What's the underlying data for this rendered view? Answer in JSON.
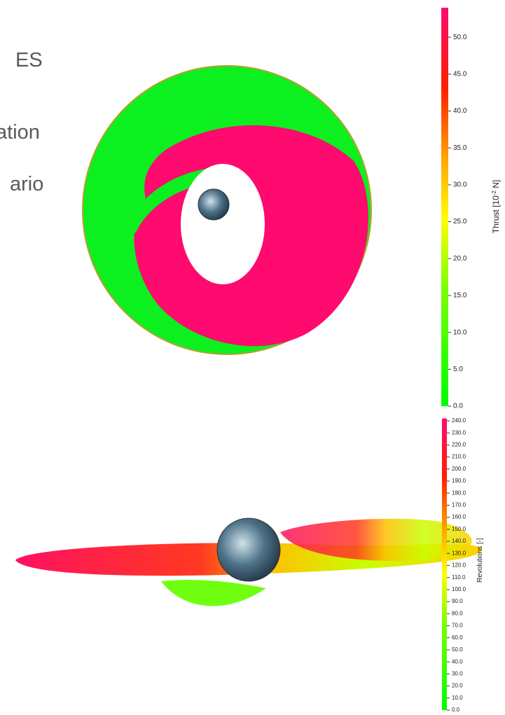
{
  "fragments": [
    "ES",
    "ation",
    "ario"
  ],
  "colorbars": [
    {
      "label": [
        "Thrust [10",
        "-2",
        " N]"
      ],
      "lim": [
        0,
        54
      ],
      "ticks": [
        {
          "value": 0,
          "label": "0.0"
        },
        {
          "value": 5,
          "label": "5.0"
        },
        {
          "value": 10,
          "label": "10.0"
        },
        {
          "value": 15,
          "label": "15.0"
        },
        {
          "value": 20,
          "label": "20.0"
        },
        {
          "value": 25,
          "label": "25.0"
        },
        {
          "value": 30,
          "label": "30.0"
        },
        {
          "value": 35,
          "label": "35.0"
        },
        {
          "value": 40,
          "label": "40.0"
        },
        {
          "value": 45,
          "label": "45.0"
        },
        {
          "value": 50,
          "label": "50.0"
        }
      ]
    },
    {
      "label": [
        "Revolutions [-]"
      ],
      "lim": [
        0,
        242
      ],
      "ticks": [
        {
          "value": 0,
          "label": "0.0"
        },
        {
          "value": 10,
          "label": "10.0"
        },
        {
          "value": 20,
          "label": "20.0"
        },
        {
          "value": 30,
          "label": "30.0"
        },
        {
          "value": 40,
          "label": "40.0"
        },
        {
          "value": 50,
          "label": "50.0"
        },
        {
          "value": 60,
          "label": "60.0"
        },
        {
          "value": 70,
          "label": "70.0"
        },
        {
          "value": 80,
          "label": "80.0"
        },
        {
          "value": 90,
          "label": "90.0"
        },
        {
          "value": 100,
          "label": "100.0"
        },
        {
          "value": 110,
          "label": "110.0"
        },
        {
          "value": 120,
          "label": "120.0"
        },
        {
          "value": 130,
          "label": "130.0"
        },
        {
          "value": 140,
          "label": "140.0"
        },
        {
          "value": 150,
          "label": "150.0"
        },
        {
          "value": 160,
          "label": "160.0"
        },
        {
          "value": 170,
          "label": "170.0"
        },
        {
          "value": 180,
          "label": "180.0"
        },
        {
          "value": 190,
          "label": "190.0"
        },
        {
          "value": 200,
          "label": "200.0"
        },
        {
          "value": 210,
          "label": "210.0"
        },
        {
          "value": 220,
          "label": "220.0"
        },
        {
          "value": 230,
          "label": "230.0"
        },
        {
          "value": 240,
          "label": "240.0"
        }
      ]
    }
  ]
}
